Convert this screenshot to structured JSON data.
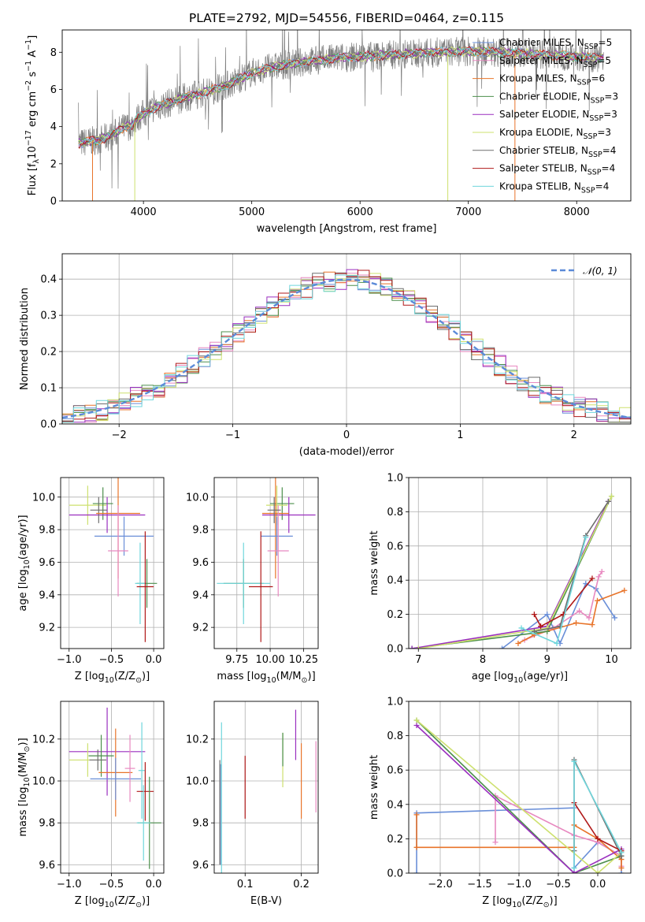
{
  "title": "PLATE=2792, MJD=54556, FIBERID=0464, z=0.115",
  "colors": {
    "Chabrier MILES": "#6a8fd8",
    "Salpeter MILES": "#e889c0",
    "Kroupa MILES": "#e8742a",
    "Chabrier ELODIE": "#4c8f4c",
    "Salpeter ELODIE": "#9a2fbf",
    "Kroupa ELODIE": "#cde06e",
    "Chabrier STELIB": "#6e6e6e",
    "Salpeter STELIB": "#b01919",
    "Kroupa STELIB": "#6fd6dc"
  },
  "legend": {
    "spectrum": [
      {
        "model": "Chabrier MILES",
        "pre": "Chabrier MILES, N",
        "sub": "SSP",
        "post": "=5"
      },
      {
        "model": "Salpeter MILES",
        "pre": "Salpeter MILES, N",
        "sub": "SSP",
        "post": "=5"
      },
      {
        "model": "Kroupa MILES",
        "pre": "Kroupa MILES, N",
        "sub": "SSP",
        "post": "=6"
      },
      {
        "model": "Chabrier ELODIE",
        "pre": "Chabrier ELODIE, N",
        "sub": "SSP",
        "post": "=3"
      },
      {
        "model": "Salpeter ELODIE",
        "pre": "Salpeter ELODIE, N",
        "sub": "SSP",
        "post": "=3"
      },
      {
        "model": "Kroupa ELODIE",
        "pre": "Kroupa ELODIE, N",
        "sub": "SSP",
        "post": "=3"
      },
      {
        "model": "Chabrier STELIB",
        "pre": "Chabrier STELIB, N",
        "sub": "SSP",
        "post": "=4"
      },
      {
        "model": "Salpeter STELIB",
        "pre": "Salpeter STELIB, N",
        "sub": "SSP",
        "post": "=4"
      },
      {
        "model": "Kroupa STELIB",
        "pre": "Kroupa STELIB, N",
        "sub": "SSP",
        "post": "=4"
      }
    ],
    "histogram": "𝒩(0, 1)"
  },
  "chart_data": [
    {
      "id": "spectrum",
      "type": "line",
      "xlabel": "wavelength [Angstrom, rest frame]",
      "ylabel": {
        "pre": "Flux [f",
        "sub": "λ",
        "mid": "10",
        "sup1": "−17",
        "mid2": " erg cm",
        "sup2": "−2",
        "mid3": " s",
        "sup3": "−1",
        "mid4": " A",
        "sup4": "−1",
        "post": "]"
      },
      "xlim": [
        3250,
        8500
      ],
      "ylim": [
        0,
        9.2
      ],
      "xticks": [
        4000,
        5000,
        6000,
        7000,
        8000
      ],
      "yticks": [
        0,
        2,
        4,
        6,
        8
      ],
      "legend_position": "upper-right",
      "data_x_range": [
        3400,
        8250
      ],
      "continuum_x": [
        3400,
        3600,
        3700,
        3800,
        3900,
        3950,
        4000,
        4100,
        4200,
        4400,
        4600,
        4800,
        5000,
        5200,
        5500,
        5800,
        6100,
        6400,
        6700,
        7000,
        7300,
        7600,
        7900,
        8250
      ],
      "continuum_y": [
        3.1,
        3.3,
        3.5,
        3.9,
        4.1,
        4.5,
        4.7,
        5.0,
        5.2,
        5.6,
        5.9,
        6.3,
        6.9,
        7.2,
        7.5,
        7.7,
        7.8,
        7.9,
        8.0,
        8.05,
        8.0,
        7.9,
        7.8,
        7.7
      ]
    },
    {
      "id": "residual-histogram",
      "type": "histogram",
      "xlabel": "(data-model)/error",
      "ylabel": "Normed distribution",
      "xlim": [
        -2.5,
        2.5
      ],
      "ylim": [
        0,
        0.47
      ],
      "xticks": [
        -2,
        -1,
        0,
        1,
        2
      ],
      "yticks": [
        0.0,
        0.1,
        0.2,
        0.3,
        0.4
      ],
      "grid": true,
      "legend_position": "upper-right",
      "bin_edges_range": [
        -2.5,
        2.5
      ],
      "bins": 50,
      "reference_curve": "normal(0,1)"
    },
    {
      "id": "age-vs-Z",
      "type": "errorbar",
      "xlabel": {
        "pre": "Z [log",
        "sub": "10",
        "mid": "(Z/Z",
        "sub2": "⊙",
        "post": ")]"
      },
      "ylabel": {
        "pre": "age  [log",
        "sub": "10",
        "post": "(age/yr)]"
      },
      "xlim": [
        -1.1,
        0.12
      ],
      "ylim": [
        9.07,
        10.12
      ],
      "xticks": [
        -1.0,
        -0.5,
        0.0
      ],
      "yticks": [
        9.2,
        9.4,
        9.6,
        9.8,
        10.0
      ],
      "grid": true,
      "points": [
        {
          "model": "Kroupa ELODIE",
          "x": -0.78,
          "y": 9.95,
          "xerr": 0.22,
          "yerr": 0.12
        },
        {
          "model": "Chabrier ELODIE",
          "x": -0.6,
          "y": 9.96,
          "xerr": 0.12,
          "yerr": 0.1
        },
        {
          "model": "Salpeter ELODIE",
          "x": -0.55,
          "y": 9.89,
          "xerr": 0.45,
          "yerr": 0.11
        },
        {
          "model": "Chabrier STELIB",
          "x": -0.65,
          "y": 9.92,
          "xerr": 0.1,
          "yerr": 0.08
        },
        {
          "model": "Kroupa MILES",
          "x": -0.42,
          "y": 9.9,
          "xerr": 0.26,
          "yerr": 0.4
        },
        {
          "model": "Chabrier MILES",
          "x": -0.35,
          "y": 9.76,
          "xerr": 0.35,
          "yerr": 0.12
        },
        {
          "model": "Salpeter MILES",
          "x": -0.42,
          "y": 9.67,
          "xerr": 0.12,
          "yerr": 0.28
        },
        {
          "model": "Chabrier ELODIE",
          "x": -0.08,
          "y": 9.47,
          "xerr": 0.12,
          "yerr": 0.15
        },
        {
          "model": "Kroupa STELIB",
          "x": -0.16,
          "y": 9.47,
          "xerr": 0.06,
          "yerr": 0.25
        },
        {
          "model": "Salpeter STELIB",
          "x": -0.1,
          "y": 9.45,
          "xerr": 0.1,
          "yerr": 0.34
        }
      ]
    },
    {
      "id": "age-vs-mass",
      "type": "errorbar",
      "xlabel": {
        "pre": "mass [log",
        "sub": "10",
        "mid": "(M/M",
        "sub2": "⊙",
        "post": ")]"
      },
      "ylabel": "",
      "xlim": [
        9.58,
        10.36
      ],
      "ylim": [
        9.07,
        10.12
      ],
      "xticks": [
        9.75,
        10.0,
        10.25
      ],
      "yticks": [
        9.2,
        9.4,
        9.6,
        9.8,
        10.0
      ],
      "grid": true,
      "points": [
        {
          "model": "Chabrier ELODIE",
          "x": 10.09,
          "y": 9.96,
          "xerr": 0.09,
          "yerr": 0.1
        },
        {
          "model": "Kroupa ELODIE",
          "x": 10.05,
          "y": 9.95,
          "xerr": 0.08,
          "yerr": 0.12
        },
        {
          "model": "Salpeter ELODIE",
          "x": 10.14,
          "y": 9.89,
          "xerr": 0.2,
          "yerr": 0.11
        },
        {
          "model": "Kroupa MILES",
          "x": 10.04,
          "y": 9.9,
          "xerr": 0.1,
          "yerr": 0.4
        },
        {
          "model": "Chabrier MILES",
          "x": 10.05,
          "y": 9.76,
          "xerr": 0.12,
          "yerr": 0.12
        },
        {
          "model": "Salpeter MILES",
          "x": 10.06,
          "y": 9.67,
          "xerr": 0.08,
          "yerr": 0.28
        },
        {
          "model": "Chabrier STELIB",
          "x": 10.03,
          "y": 9.92,
          "xerr": 0.05,
          "yerr": 0.08
        },
        {
          "model": "Chabrier ELODIE",
          "x": 9.8,
          "y": 9.47,
          "xerr": 0.15,
          "yerr": 0.15
        },
        {
          "model": "Kroupa STELIB",
          "x": 9.8,
          "y": 9.47,
          "xerr": 0.2,
          "yerr": 0.25
        },
        {
          "model": "Salpeter STELIB",
          "x": 9.93,
          "y": 9.45,
          "xerr": 0.09,
          "yerr": 0.34
        }
      ]
    },
    {
      "id": "weight-vs-age",
      "type": "line",
      "xlabel": {
        "pre": "age  [log",
        "sub": "10",
        "post": "(age/yr)]"
      },
      "ylabel": "mass weight",
      "xlim": [
        6.85,
        10.3
      ],
      "ylim": [
        0,
        1.0
      ],
      "xticks": [
        7,
        8,
        9,
        10
      ],
      "yticks": [
        0.0,
        0.2,
        0.4,
        0.6,
        0.8,
        1.0
      ],
      "grid": true,
      "series": [
        {
          "model": "Chabrier MILES",
          "x": [
            8.3,
            9.0,
            9.2,
            9.6,
            9.76,
            10.05
          ],
          "y": [
            0.0,
            0.2,
            0.03,
            0.38,
            0.35,
            0.18
          ]
        },
        {
          "model": "Salpeter MILES",
          "x": [
            8.65,
            9.1,
            9.5,
            9.65,
            9.8,
            9.85
          ],
          "y": [
            0.05,
            0.12,
            0.22,
            0.18,
            0.42,
            0.45
          ]
        },
        {
          "model": "Kroupa MILES",
          "x": [
            8.55,
            8.8,
            9.45,
            9.7,
            9.78,
            10.2
          ],
          "y": [
            0.03,
            0.08,
            0.15,
            0.14,
            0.28,
            0.34
          ]
        },
        {
          "model": "Chabrier ELODIE",
          "x": [
            6.9,
            9.0,
            10.0
          ],
          "y": [
            0.0,
            0.1,
            0.89
          ]
        },
        {
          "model": "Salpeter ELODIE",
          "x": [
            6.9,
            9.0,
            9.95
          ],
          "y": [
            0.0,
            0.13,
            0.86
          ]
        },
        {
          "model": "Kroupa ELODIE",
          "x": [
            7.0,
            9.0,
            10.0
          ],
          "y": [
            0.0,
            0.12,
            0.89
          ]
        },
        {
          "model": "Chabrier STELIB",
          "x": [
            8.8,
            9.2,
            9.6,
            9.95
          ],
          "y": [
            0.1,
            0.13,
            0.66,
            0.86
          ]
        },
        {
          "model": "Salpeter STELIB",
          "x": [
            8.8,
            8.9,
            9.25,
            9.7
          ],
          "y": [
            0.2,
            0.13,
            0.2,
            0.41
          ]
        },
        {
          "model": "Kroupa STELIB",
          "x": [
            8.6,
            9.15,
            9.6
          ],
          "y": [
            0.12,
            0.03,
            0.65
          ]
        }
      ]
    },
    {
      "id": "mass-vs-Z",
      "type": "errorbar",
      "xlabel": {
        "pre": "Z [log",
        "sub": "10",
        "mid": "(Z/Z",
        "sub2": "⊙",
        "post": ")]"
      },
      "ylabel": {
        "pre": "mass [log",
        "sub": "10",
        "mid": "(M/M",
        "sub2": "⊙",
        "post": ")]"
      },
      "xlim": [
        -1.1,
        0.12
      ],
      "ylim": [
        9.56,
        10.38
      ],
      "xticks": [
        -1.0,
        -0.5,
        0.0
      ],
      "yticks": [
        9.6,
        9.8,
        10.0,
        10.2
      ],
      "grid": true,
      "points": [
        {
          "model": "Salpeter ELODIE",
          "x": -0.55,
          "y": 10.14,
          "xerr": 0.45,
          "yerr": 0.21
        },
        {
          "model": "Chabrier ELODIE",
          "x": -0.62,
          "y": 10.12,
          "xerr": 0.15,
          "yerr": 0.1
        },
        {
          "model": "Kroupa ELODIE",
          "x": -0.78,
          "y": 10.1,
          "xerr": 0.22,
          "yerr": 0.08
        },
        {
          "model": "Chabrier STELIB",
          "x": -0.66,
          "y": 10.1,
          "xerr": 0.1,
          "yerr": 0.05
        },
        {
          "model": "Kroupa MILES",
          "x": -0.45,
          "y": 10.04,
          "xerr": 0.2,
          "yerr": 0.21
        },
        {
          "model": "Chabrier MILES",
          "x": -0.45,
          "y": 10.01,
          "xerr": 0.3,
          "yerr": 0.1
        },
        {
          "model": "Salpeter MILES",
          "x": -0.28,
          "y": 10.06,
          "xerr": 0.06,
          "yerr": 0.16
        },
        {
          "model": "Kroupa STELIB",
          "x": -0.14,
          "y": 10.05,
          "xerr": 0.04,
          "yerr": 0.23
        },
        {
          "model": "Salpeter STELIB",
          "x": -0.1,
          "y": 9.95,
          "xerr": 0.1,
          "yerr": 0.14
        },
        {
          "model": "Chabrier ELODIE",
          "x": -0.05,
          "y": 9.8,
          "xerr": 0.14,
          "yerr": 0.22
        },
        {
          "model": "Kroupa STELIB",
          "x": -0.12,
          "y": 9.8,
          "xerr": 0.08,
          "yerr": 0.18
        }
      ]
    },
    {
      "id": "mass-vs-ebv",
      "type": "errorbar",
      "xlabel": "E(B-V)",
      "ylabel": "",
      "xlim": [
        0.045,
        0.23
      ],
      "ylim": [
        9.56,
        10.38
      ],
      "xticks": [
        0.1,
        0.2
      ],
      "yticks": [
        9.6,
        9.8,
        10.0,
        10.2
      ],
      "grid": true,
      "points": [
        {
          "model": "Chabrier MILES",
          "x": 0.056,
          "y": 9.84,
          "xerr": 0,
          "yerr": 0.24
        },
        {
          "model": "Kroupa STELIB",
          "x": 0.058,
          "y": 9.9,
          "xerr": 0,
          "yerr": 0.38
        },
        {
          "model": "Chabrier STELIB",
          "x": 0.055,
          "y": 9.85,
          "xerr": 0,
          "yerr": 0.25
        },
        {
          "model": "Salpeter STELIB",
          "x": 0.1,
          "y": 9.97,
          "xerr": 0,
          "yerr": 0.15
        },
        {
          "model": "Kroupa ELODIE",
          "x": 0.167,
          "y": 10.1,
          "xerr": 0,
          "yerr": 0.13
        },
        {
          "model": "Chabrier ELODIE",
          "x": 0.167,
          "y": 10.15,
          "xerr": 0,
          "yerr": 0.08
        },
        {
          "model": "Salpeter ELODIE",
          "x": 0.19,
          "y": 10.22,
          "xerr": 0,
          "yerr": 0.12
        },
        {
          "model": "Kroupa MILES",
          "x": 0.2,
          "y": 10.0,
          "xerr": 0,
          "yerr": 0.18
        },
        {
          "model": "Salpeter MILES",
          "x": 0.226,
          "y": 10.02,
          "xerr": 0,
          "yerr": 0.17
        }
      ]
    },
    {
      "id": "weight-vs-Z",
      "type": "line",
      "xlabel": {
        "pre": "Z [log",
        "sub": "10",
        "mid": "(Z/Z",
        "sub2": "⊙",
        "post": ")]"
      },
      "ylabel": "mass weight",
      "xlim": [
        -2.4,
        0.42
      ],
      "ylim": [
        0,
        1.0
      ],
      "xticks": [
        -2.0,
        -1.5,
        -1.0,
        -0.5,
        0.0
      ],
      "yticks": [
        0.0,
        0.2,
        0.4,
        0.6,
        0.8,
        1.0
      ],
      "grid": true,
      "series": [
        {
          "model": "Chabrier MILES",
          "x": [
            -2.3,
            -2.3,
            -0.3,
            -0.3,
            0.0,
            0.3,
            0.3
          ],
          "y": [
            0.0,
            0.35,
            0.38,
            0.03,
            0.18,
            0.1,
            0.0
          ]
        },
        {
          "model": "Salpeter MILES",
          "x": [
            -1.3,
            -1.3,
            -0.3,
            0.0,
            0.3,
            0.3
          ],
          "y": [
            0.18,
            0.45,
            0.22,
            0.18,
            0.1,
            0.04
          ]
        },
        {
          "model": "Kroupa MILES",
          "x": [
            -2.3,
            -2.3,
            -0.3,
            -0.3,
            0.0,
            0.3,
            0.3
          ],
          "y": [
            0.34,
            0.15,
            0.15,
            0.28,
            0.2,
            0.08,
            0.03
          ]
        },
        {
          "model": "Chabrier ELODIE",
          "x": [
            -2.3,
            -0.3,
            0.3
          ],
          "y": [
            0.89,
            0.0,
            0.1
          ]
        },
        {
          "model": "Salpeter ELODIE",
          "x": [
            -2.3,
            -0.3,
            0.3
          ],
          "y": [
            0.86,
            0.0,
            0.14
          ]
        },
        {
          "model": "Kroupa ELODIE",
          "x": [
            -2.3,
            0.0,
            0.3
          ],
          "y": [
            0.89,
            0.0,
            0.12
          ]
        },
        {
          "model": "Chabrier STELIB",
          "x": [
            -0.3,
            -0.3,
            0.3,
            0.3
          ],
          "y": [
            0.13,
            0.66,
            0.1,
            0.13
          ]
        },
        {
          "model": "Salpeter STELIB",
          "x": [
            -0.3,
            0.0,
            0.3
          ],
          "y": [
            0.41,
            0.2,
            0.13
          ]
        },
        {
          "model": "Kroupa STELIB",
          "x": [
            -0.3,
            -0.3,
            0.3
          ],
          "y": [
            0.03,
            0.65,
            0.12
          ]
        }
      ]
    }
  ]
}
